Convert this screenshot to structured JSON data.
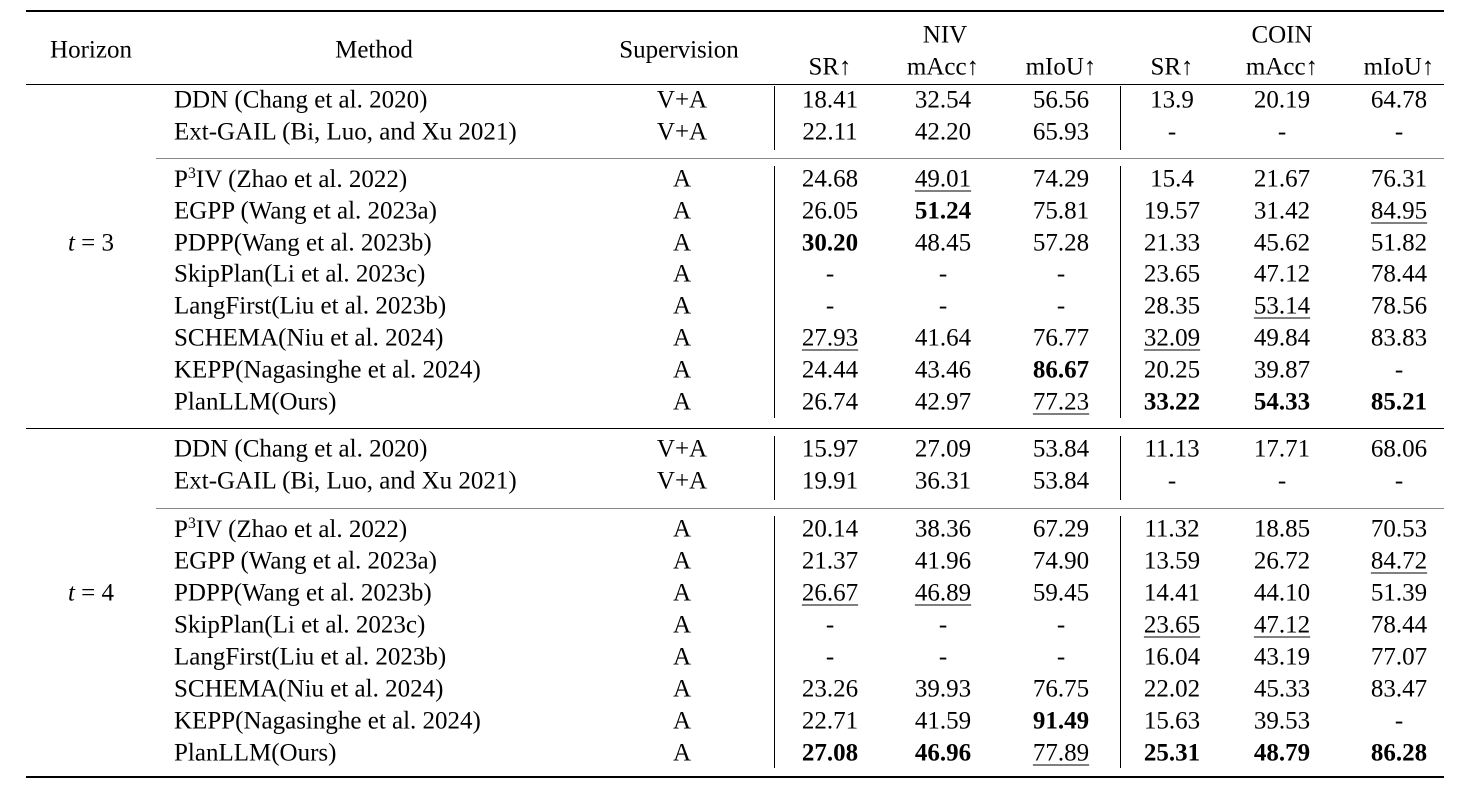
{
  "header": {
    "horizon": "Horizon",
    "method": "Method",
    "supervision": "Supervision",
    "niv": "NIV",
    "coin": "COIN",
    "sr": "SR↑",
    "macc": "mAcc↑",
    "miou": "mIoU↑"
  },
  "groups": [
    {
      "horizon_label": "t = 3",
      "rows": [
        {
          "method": "DDN (Chang et al. 2020)",
          "sup": "V+A",
          "v": [
            "18.41",
            "32.54",
            "56.56",
            "13.9",
            "20.19",
            "64.78"
          ],
          "fmt": [
            "",
            "",
            "",
            "",
            "",
            ""
          ]
        },
        {
          "method": "Ext-GAIL (Bi, Luo, and Xu 2021)",
          "sup": "V+A",
          "v": [
            "22.11",
            "42.20",
            "65.93",
            "-",
            "-",
            "-"
          ],
          "fmt": [
            "",
            "",
            "",
            "",
            "",
            ""
          ]
        },
        {
          "method_prefix": "P",
          "method_sup": "3",
          "method": "IV (Zhao et al. 2022)",
          "sup": "A",
          "v": [
            "24.68",
            "49.01",
            "74.29",
            "15.4",
            "21.67",
            "76.31"
          ],
          "fmt": [
            "",
            "u",
            "",
            "",
            "",
            ""
          ]
        },
        {
          "method": "EGPP (Wang et al. 2023a)",
          "sup": "A",
          "v": [
            "26.05",
            "51.24",
            "75.81",
            "19.57",
            "31.42",
            "84.95"
          ],
          "fmt": [
            "",
            "b",
            "",
            "",
            "",
            "u"
          ]
        },
        {
          "method": "PDPP(Wang et al. 2023b)",
          "sup": "A",
          "v": [
            "30.20",
            "48.45",
            "57.28",
            "21.33",
            "45.62",
            "51.82"
          ],
          "fmt": [
            "b",
            "",
            "",
            "",
            "",
            ""
          ]
        },
        {
          "method": "SkipPlan(Li et al. 2023c)",
          "sup": "A",
          "v": [
            "-",
            "-",
            "-",
            "23.65",
            "47.12",
            "78.44"
          ],
          "fmt": [
            "",
            "",
            "",
            "",
            "",
            ""
          ]
        },
        {
          "method": "LangFirst(Liu et al. 2023b)",
          "sup": "A",
          "v": [
            "-",
            "-",
            "-",
            "28.35",
            "53.14",
            "78.56"
          ],
          "fmt": [
            "",
            "",
            "",
            "",
            "u",
            ""
          ]
        },
        {
          "method": "SCHEMA(Niu et al. 2024)",
          "sup": "A",
          "v": [
            "27.93",
            "41.64",
            "76.77",
            "32.09",
            "49.84",
            "83.83"
          ],
          "fmt": [
            "u",
            "",
            "",
            "u",
            "",
            ""
          ]
        },
        {
          "method": "KEPP(Nagasinghe et al. 2024)",
          "sup": "A",
          "v": [
            "24.44",
            "43.46",
            "86.67",
            "20.25",
            "39.87",
            "-"
          ],
          "fmt": [
            "",
            "",
            "b",
            "",
            "",
            ""
          ]
        },
        {
          "method": "PlanLLM(Ours)",
          "sup": "A",
          "v": [
            "26.74",
            "42.97",
            "77.23",
            "33.22",
            "54.33",
            "85.21"
          ],
          "fmt": [
            "",
            "",
            "u",
            "b",
            "b",
            "b"
          ]
        }
      ]
    },
    {
      "horizon_label": "t = 4",
      "rows": [
        {
          "method": "DDN (Chang et al. 2020)",
          "sup": "V+A",
          "v": [
            "15.97",
            "27.09",
            "53.84",
            "11.13",
            "17.71",
            "68.06"
          ],
          "fmt": [
            "",
            "",
            "",
            "",
            "",
            ""
          ]
        },
        {
          "method": "Ext-GAIL (Bi, Luo, and Xu 2021)",
          "sup": "V+A",
          "v": [
            "19.91",
            "36.31",
            "53.84",
            "-",
            "-",
            "-"
          ],
          "fmt": [
            "",
            "",
            "",
            "",
            "",
            ""
          ]
        },
        {
          "method_prefix": "P",
          "method_sup": "3",
          "method": "IV (Zhao et al. 2022)",
          "sup": "A",
          "v": [
            "20.14",
            "38.36",
            "67.29",
            "11.32",
            "18.85",
            "70.53"
          ],
          "fmt": [
            "",
            "",
            "",
            "",
            "",
            ""
          ]
        },
        {
          "method": "EGPP (Wang et al. 2023a)",
          "sup": "A",
          "v": [
            "21.37",
            "41.96",
            "74.90",
            "13.59",
            "26.72",
            "84.72"
          ],
          "fmt": [
            "",
            "",
            "",
            "",
            "",
            "u"
          ]
        },
        {
          "method": "PDPP(Wang et al. 2023b)",
          "sup": "A",
          "v": [
            "26.67",
            "46.89",
            "59.45",
            "14.41",
            "44.10",
            "51.39"
          ],
          "fmt": [
            "u",
            "u",
            "",
            "",
            "",
            ""
          ]
        },
        {
          "method": "SkipPlan(Li et al. 2023c)",
          "sup": "A",
          "v": [
            "-",
            "-",
            "-",
            "23.65",
            "47.12",
            "78.44"
          ],
          "fmt": [
            "",
            "",
            "",
            "u",
            "u",
            ""
          ]
        },
        {
          "method": "LangFirst(Liu et al. 2023b)",
          "sup": "A",
          "v": [
            "-",
            "-",
            "-",
            "16.04",
            "43.19",
            "77.07"
          ],
          "fmt": [
            "",
            "",
            "",
            "",
            "",
            ""
          ]
        },
        {
          "method": "SCHEMA(Niu et al. 2024)",
          "sup": "A",
          "v": [
            "23.26",
            "39.93",
            "76.75",
            "22.02",
            "45.33",
            "83.47"
          ],
          "fmt": [
            "",
            "",
            "",
            "",
            "",
            ""
          ]
        },
        {
          "method": "KEPP(Nagasinghe et al. 2024)",
          "sup": "A",
          "v": [
            "22.71",
            "41.59",
            "91.49",
            "15.63",
            "39.53",
            "-"
          ],
          "fmt": [
            "",
            "",
            "b",
            "",
            "",
            ""
          ]
        },
        {
          "method": "PlanLLM(Ours)",
          "sup": "A",
          "v": [
            "27.08",
            "46.96",
            "77.89",
            "25.31",
            "48.79",
            "86.28"
          ],
          "fmt": [
            "b",
            "b",
            "u",
            "b",
            "b",
            "b"
          ]
        }
      ]
    }
  ]
}
